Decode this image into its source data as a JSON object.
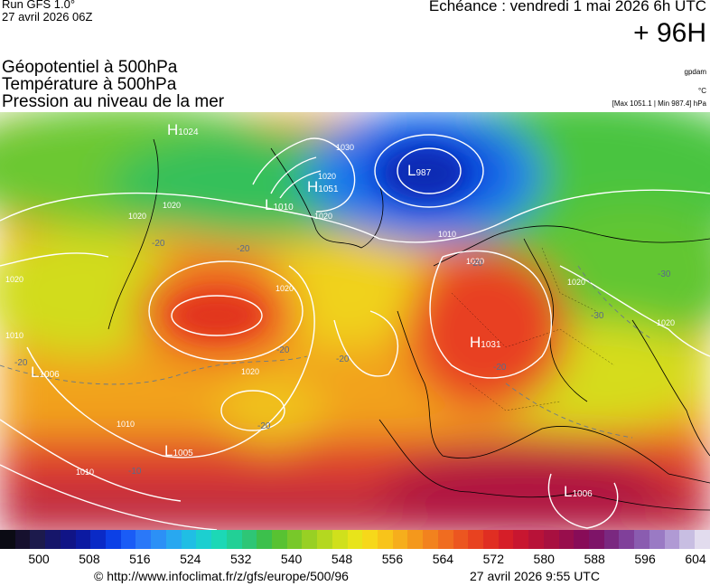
{
  "header": {
    "run": "Run GFS 1.0°",
    "run_date": "27 avril 2026 06Z",
    "echeance": "Echéance : vendredi 1 mai 2026 6h UTC",
    "lead": "+ 96H"
  },
  "titles": {
    "line1": "Géopotentiel à 500hPa",
    "line2": "Température à 500hPa",
    "line3": "Pression au niveau de la mer"
  },
  "units": {
    "geopotential": "gpdam",
    "temperature": "°C",
    "pressure_range": "[Max 1051.1 | Min 987.4] hPa"
  },
  "map": {
    "pressure_centers": [
      {
        "type": "H",
        "value": "1024"
      },
      {
        "type": "H",
        "value": "1051"
      },
      {
        "type": "L",
        "value": "1010"
      },
      {
        "type": "L",
        "value": "987"
      },
      {
        "type": "H",
        "value": "1031"
      },
      {
        "type": "L",
        "value": "1006"
      },
      {
        "type": "L",
        "value": "1005"
      },
      {
        "type": "L",
        "value": "1006"
      }
    ],
    "isobar_labels": [
      "1020",
      "1030",
      "1020",
      "1020",
      "1010",
      "1020",
      "1020",
      "1020",
      "1020",
      "1010",
      "1010",
      "1020",
      "1010",
      "1020",
      "1020"
    ],
    "temperature_labels": [
      "-20",
      "-20",
      "-20",
      "-30",
      "-30",
      "-20",
      "-20",
      "-20",
      "-20",
      "-10",
      "-20"
    ]
  },
  "scale": {
    "colors": [
      "#0b0b14",
      "#16102e",
      "#1c1a4c",
      "#16166a",
      "#101486",
      "#0c1aa2",
      "#0a2ac6",
      "#0c40e6",
      "#1a5cf6",
      "#2a78f8",
      "#2c90f6",
      "#28a8f0",
      "#20bee4",
      "#1ccfd0",
      "#1cd8b6",
      "#22d096",
      "#2ec676",
      "#3cc04c",
      "#58c232",
      "#78c82a",
      "#98d024",
      "#b4d820",
      "#d0e01c",
      "#e8e41a",
      "#f6d81a",
      "#f8c41a",
      "#f6ae1c",
      "#f4981c",
      "#f2821e",
      "#f06c20",
      "#ec5620",
      "#e84220",
      "#e02e22",
      "#d61e28",
      "#c81630",
      "#b81238",
      "#a81040",
      "#980e4c",
      "#880c58",
      "#7e1468",
      "#7a2880",
      "#80409a",
      "#8a5cb0",
      "#9a7ac4",
      "#b09ad4",
      "#c8bee2",
      "#e2dcee"
    ],
    "ticks": [
      "500",
      "508",
      "516",
      "524",
      "532",
      "540",
      "548",
      "556",
      "564",
      "572",
      "580",
      "588",
      "596",
      "604"
    ]
  },
  "footer": {
    "url": "© http://www.infoclimat.fr/z/gfs/europe/500/96",
    "time": "27 avril 2026  9:55 UTC"
  }
}
